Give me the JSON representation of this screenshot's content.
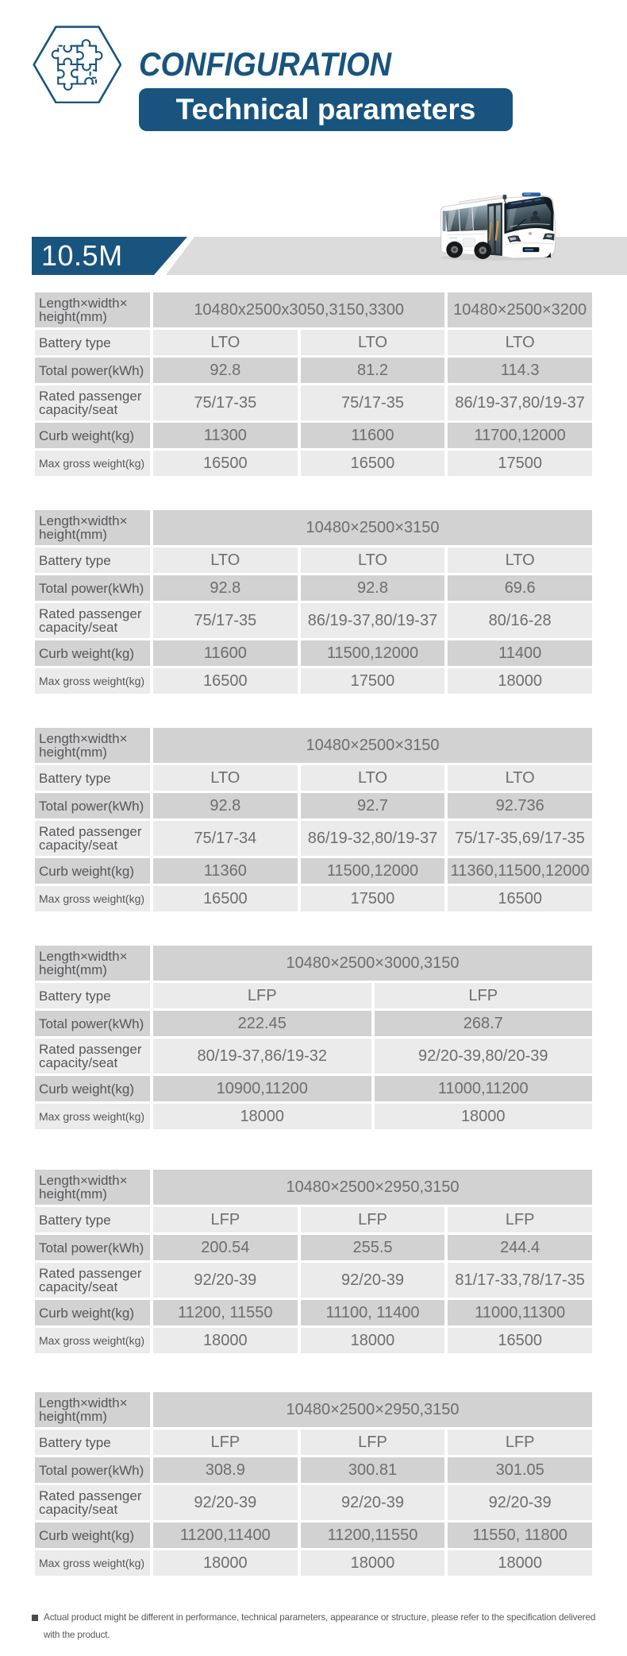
{
  "header": {
    "icon": "puzzle-hexagon-icon",
    "section_title": "CONFIGURATION",
    "banner_title": "Technical parameters"
  },
  "model_band": {
    "model_label": "10.5M",
    "bus_image": "white-electric-city-bus"
  },
  "colors": {
    "brand_blue": "#19547F",
    "row_dark": "#D2D2D2",
    "row_light": "#EBEBEB",
    "band_gray": "#DCDCDC",
    "label_text": "#55565A",
    "value_text": "#6D6E70"
  },
  "tables": [
    {
      "columns": 3,
      "rows": [
        {
          "label": "Length×width×\nheight(mm)",
          "cells": [
            {
              "t": "10480x2500x3050,3150,3300",
              "span": 2
            },
            {
              "t": "10480×2500×3200",
              "span": 1
            }
          ]
        },
        {
          "label": "Battery type",
          "cells": [
            {
              "t": "LTO"
            },
            {
              "t": "LTO"
            },
            {
              "t": "LTO"
            }
          ]
        },
        {
          "label": "Total power(kWh)",
          "cells": [
            {
              "t": "92.8"
            },
            {
              "t": "81.2"
            },
            {
              "t": "114.3"
            }
          ]
        },
        {
          "label": "Rated passenger\ncapacity/seat",
          "cells": [
            {
              "t": "75/17-35"
            },
            {
              "t": "75/17-35"
            },
            {
              "t": "86/19-37,80/19-37"
            }
          ]
        },
        {
          "label": "Curb weight(kg)",
          "cells": [
            {
              "t": "11300"
            },
            {
              "t": "11600"
            },
            {
              "t": "11700,12000"
            }
          ]
        },
        {
          "label": "Max gross weight(kg)",
          "cells": [
            {
              "t": "16500"
            },
            {
              "t": "16500"
            },
            {
              "t": "17500"
            }
          ]
        }
      ]
    },
    {
      "columns": 3,
      "rows": [
        {
          "label": "Length×width×\nheight(mm)",
          "cells": [
            {
              "t": "10480×2500×3150",
              "span": 3
            }
          ]
        },
        {
          "label": "Battery type",
          "cells": [
            {
              "t": "LTO"
            },
            {
              "t": "LTO"
            },
            {
              "t": "LTO"
            }
          ]
        },
        {
          "label": "Total power(kWh)",
          "cells": [
            {
              "t": "92.8"
            },
            {
              "t": "92.8"
            },
            {
              "t": "69.6"
            }
          ]
        },
        {
          "label": "Rated passenger\ncapacity/seat",
          "cells": [
            {
              "t": "75/17-35"
            },
            {
              "t": "86/19-37,80/19-37"
            },
            {
              "t": "80/16-28"
            }
          ]
        },
        {
          "label": "Curb weight(kg)",
          "cells": [
            {
              "t": "11600"
            },
            {
              "t": "11500,12000"
            },
            {
              "t": "11400"
            }
          ]
        },
        {
          "label": "Max gross weight(kg)",
          "cells": [
            {
              "t": "16500"
            },
            {
              "t": "17500"
            },
            {
              "t": "18000"
            }
          ]
        }
      ]
    },
    {
      "columns": 3,
      "rows": [
        {
          "label": "Length×width×\nheight(mm)",
          "cells": [
            {
              "t": "10480×2500×3150",
              "span": 3
            }
          ]
        },
        {
          "label": "Battery type",
          "cells": [
            {
              "t": "LTO"
            },
            {
              "t": "LTO"
            },
            {
              "t": "LTO"
            }
          ]
        },
        {
          "label": "Total power(kWh)",
          "cells": [
            {
              "t": "92.8"
            },
            {
              "t": "92.7"
            },
            {
              "t": "92.736"
            }
          ]
        },
        {
          "label": "Rated passenger\ncapacity/seat",
          "cells": [
            {
              "t": "75/17-34"
            },
            {
              "t": "86/19-32,80/19-37"
            },
            {
              "t": "75/17-35,69/17-35"
            }
          ]
        },
        {
          "label": "Curb weight(kg)",
          "cells": [
            {
              "t": "11360"
            },
            {
              "t": "11500,12000"
            },
            {
              "t": "11360,11500,12000"
            }
          ]
        },
        {
          "label": "Max gross weight(kg)",
          "cells": [
            {
              "t": "16500"
            },
            {
              "t": "17500"
            },
            {
              "t": "16500"
            }
          ]
        }
      ]
    },
    {
      "columns": 2,
      "rows": [
        {
          "label": "Length×width×\nheight(mm)",
          "cells": [
            {
              "t": "10480×2500×3000,3150",
              "span": 2
            }
          ]
        },
        {
          "label": "Battery type",
          "cells": [
            {
              "t": "LFP"
            },
            {
              "t": "LFP"
            }
          ]
        },
        {
          "label": "Total power(kWh)",
          "cells": [
            {
              "t": "222.45"
            },
            {
              "t": "268.7"
            }
          ]
        },
        {
          "label": "Rated passenger\ncapacity/seat",
          "cells": [
            {
              "t": "80/19-37,86/19-32"
            },
            {
              "t": "92/20-39,80/20-39"
            }
          ]
        },
        {
          "label": "Curb weight(kg)",
          "cells": [
            {
              "t": "10900,11200"
            },
            {
              "t": "11000,11200"
            }
          ]
        },
        {
          "label": "Max gross weight(kg)",
          "cells": [
            {
              "t": "18000"
            },
            {
              "t": "18000"
            }
          ]
        }
      ]
    },
    {
      "columns": 3,
      "rows": [
        {
          "label": "Length×width×\nheight(mm)",
          "cells": [
            {
              "t": "10480×2500×2950,3150",
              "span": 3
            }
          ]
        },
        {
          "label": "Battery type",
          "cells": [
            {
              "t": "LFP"
            },
            {
              "t": "LFP"
            },
            {
              "t": "LFP"
            }
          ]
        },
        {
          "label": "Total power(kWh)",
          "cells": [
            {
              "t": "200.54"
            },
            {
              "t": "255.5"
            },
            {
              "t": "244.4"
            }
          ]
        },
        {
          "label": "Rated passenger\ncapacity/seat",
          "cells": [
            {
              "t": "92/20-39"
            },
            {
              "t": "92/20-39"
            },
            {
              "t": "81/17-33,78/17-35"
            }
          ]
        },
        {
          "label": "Curb weight(kg)",
          "cells": [
            {
              "t": "11200, 11550"
            },
            {
              "t": "11100, 11400"
            },
            {
              "t": "11000,11300"
            }
          ]
        },
        {
          "label": "Max gross weight(kg)",
          "cells": [
            {
              "t": "18000"
            },
            {
              "t": "18000"
            },
            {
              "t": "16500"
            }
          ]
        }
      ]
    },
    {
      "columns": 3,
      "rows": [
        {
          "label": "Length×width×\nheight(mm)",
          "cells": [
            {
              "t": "10480×2500×2950,3150",
              "span": 3
            }
          ]
        },
        {
          "label": "Battery type",
          "cells": [
            {
              "t": "LFP"
            },
            {
              "t": "LFP"
            },
            {
              "t": "LFP"
            }
          ]
        },
        {
          "label": "Total power(kWh)",
          "cells": [
            {
              "t": "308.9"
            },
            {
              "t": "300.81"
            },
            {
              "t": "301.05"
            }
          ]
        },
        {
          "label": "Rated passenger\ncapacity/seat",
          "cells": [
            {
              "t": "92/20-39"
            },
            {
              "t": "92/20-39"
            },
            {
              "t": "92/20-39"
            }
          ]
        },
        {
          "label": "Curb weight(kg)",
          "cells": [
            {
              "t": "11200,11400"
            },
            {
              "t": "11200,11550"
            },
            {
              "t": "11550, 11800"
            }
          ]
        },
        {
          "label": "Max gross weight(kg)",
          "cells": [
            {
              "t": "18000"
            },
            {
              "t": "18000"
            },
            {
              "t": "18000"
            }
          ]
        }
      ]
    }
  ],
  "footer": {
    "note": "Actual product might be different in performance, technical parameters, appearance or structure, please refer to the specification delivered with the product.",
    "note_lines": "Actual product might be different in performance, technical parameters, appearance or structure, please refer to the specification delivered\nwith the product."
  }
}
